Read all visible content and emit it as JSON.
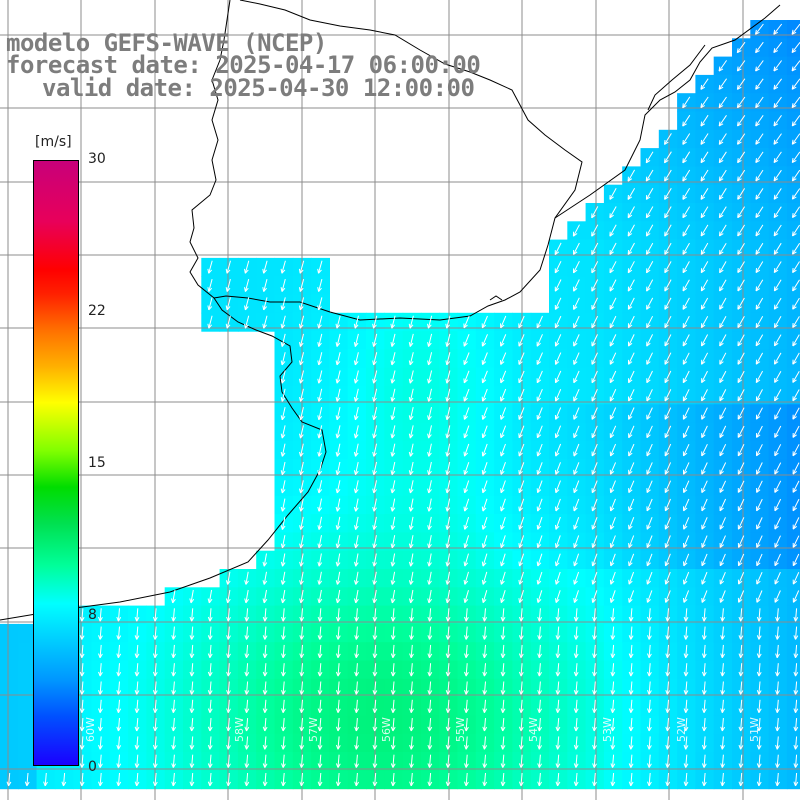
{
  "title": {
    "line1": "modelo GEFS-WAVE (NCEP)",
    "line2": "forecast date: 2025-04-17 06:00:00",
    "line3": "valid date: 2025-04-30 12:00:00"
  },
  "colorbar": {
    "unit": "[m/s]",
    "min": 0,
    "max": 30,
    "ticks": [
      "30",
      "22",
      "15",
      "8",
      "0"
    ],
    "tick_values": [
      30,
      22,
      15,
      8,
      0
    ]
  },
  "colors": {
    "land": "#ffffff",
    "grid": "#8c8c8c",
    "coast": "#000000",
    "arrows": "#ffffff",
    "title": "#7d7d7d"
  },
  "longitude_labels": [
    "60W",
    "59W",
    "58W",
    "57W",
    "56W",
    "55W",
    "54W",
    "53W",
    "52W",
    "51W",
    "50W"
  ],
  "wind_field": {
    "direction": "from north-east veering to north",
    "speed_range_ms": [
      6,
      11
    ]
  }
}
